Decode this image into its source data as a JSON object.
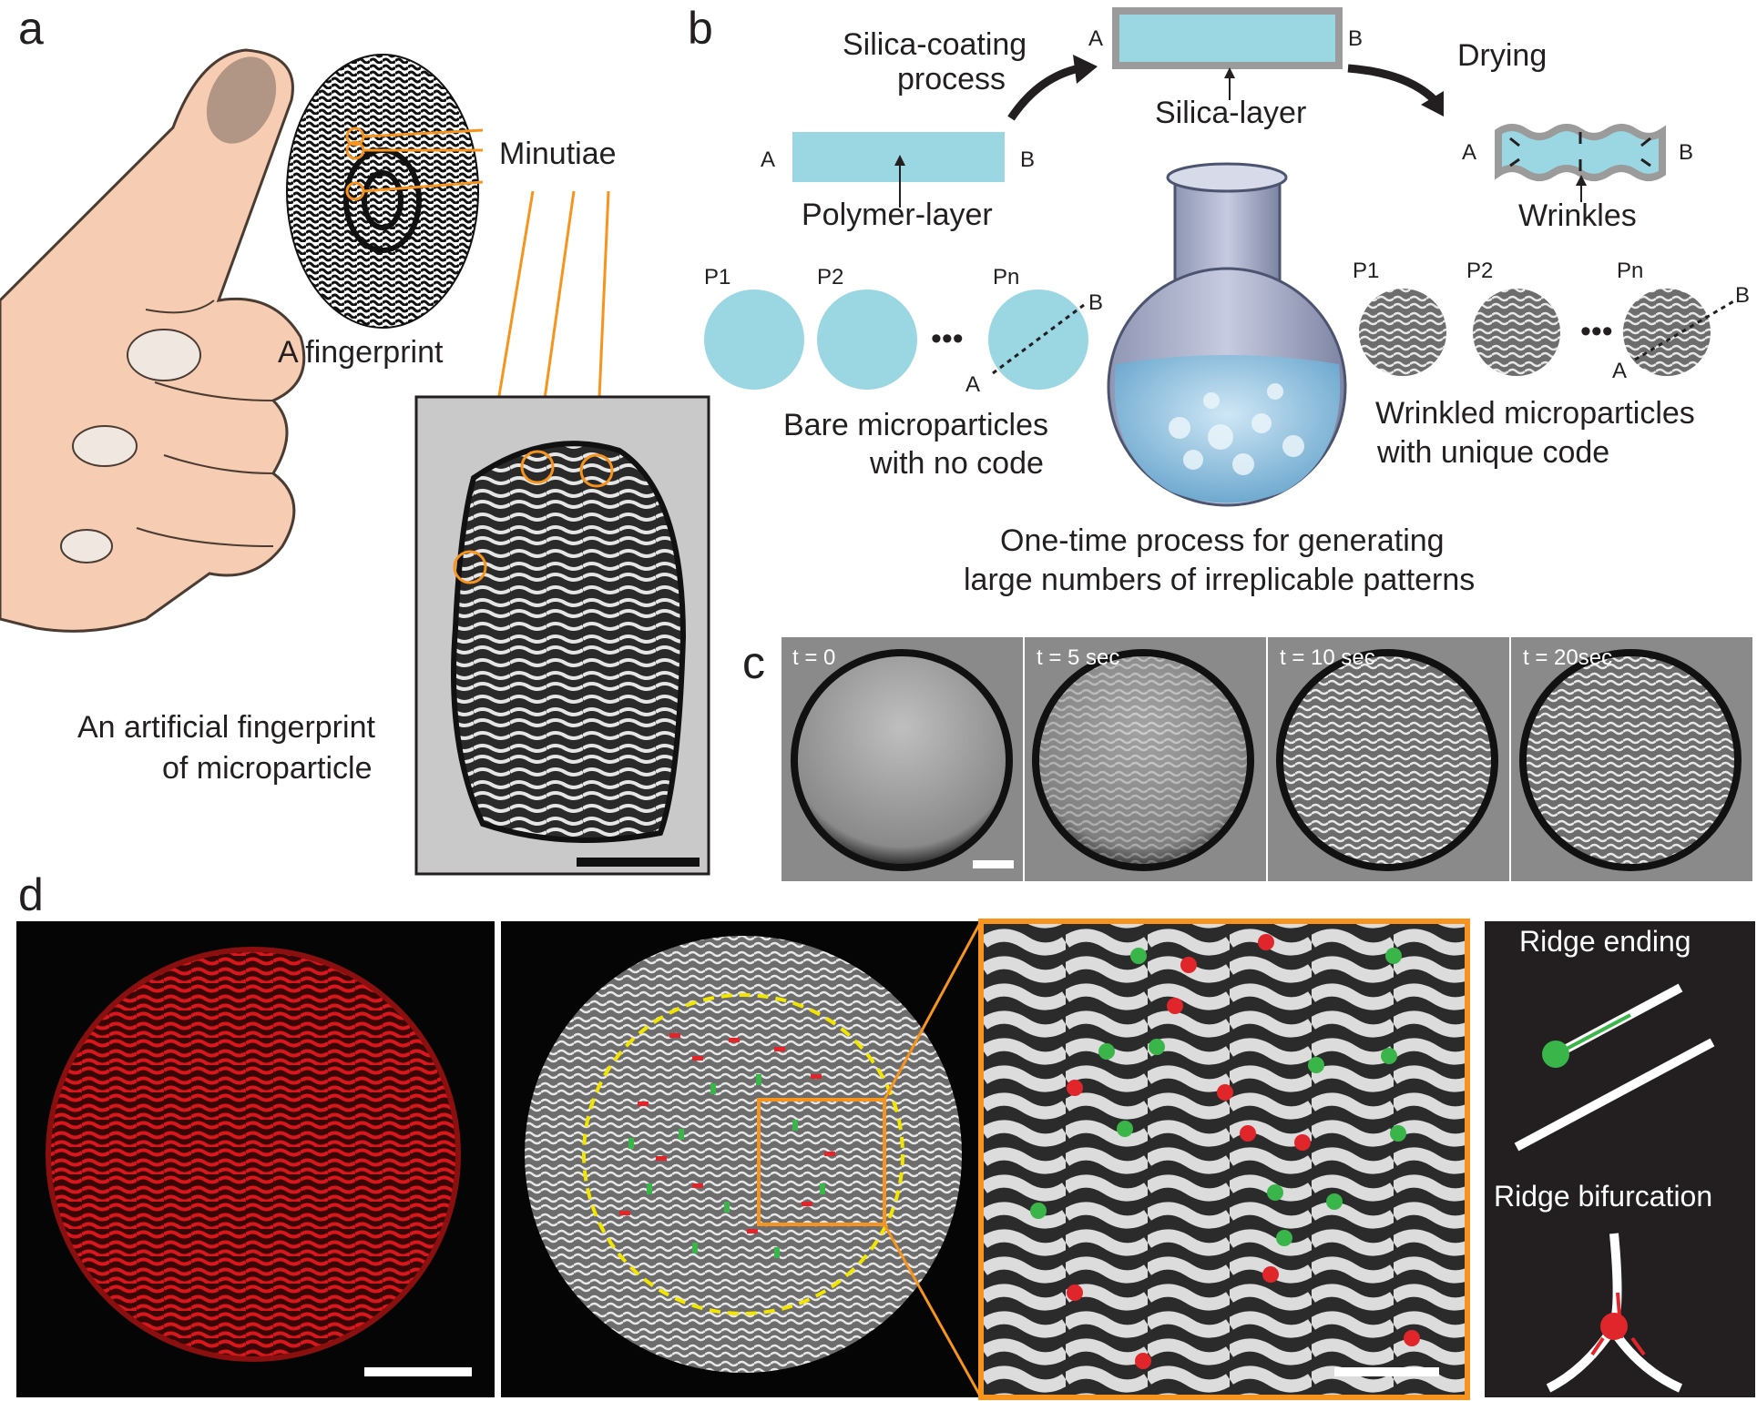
{
  "panels": {
    "a": {
      "letter": "a",
      "fingerprint_label": "A fingerprint",
      "minutiae_label": "Minutiae",
      "artificial_label_line1": "An artificial fingerprint",
      "artificial_label_line2": "of microparticle"
    },
    "b": {
      "letter": "b",
      "silica_coating_line1": "Silica-coating",
      "silica_coating_line2": "process",
      "drying": "Drying",
      "silica_layer": "Silica-layer",
      "polymer_layer": "Polymer-layer",
      "wrinkles": "Wrinkles",
      "point_a": "A",
      "point_b": "B",
      "particles_left": [
        "P1",
        "P2",
        "Pn"
      ],
      "particles_right": [
        "P1",
        "P2",
        "Pn"
      ],
      "ellipsis": "•••",
      "bare_line1": "Bare microparticles",
      "bare_line2": "with no code",
      "wrinkled_line1": "Wrinkled microparticles",
      "wrinkled_line2": "with unique code",
      "process_line1": "One-time process for generating",
      "process_line2": "large numbers of  irreplicable patterns"
    },
    "c": {
      "letter": "c",
      "times": [
        "t = 0",
        "t = 5 sec",
        "t = 10 sec",
        "t = 20sec"
      ]
    },
    "d": {
      "letter": "d",
      "ridge_ending": "Ridge ending",
      "ridge_bifurcation": "Ridge bifurcation"
    }
  },
  "colors": {
    "orange": "#f7941d",
    "cyan": "#9ad7e3",
    "red": "#e0262a",
    "green": "#3ab54a",
    "yellow": "#f2e600",
    "skin": "#f6cdb2"
  }
}
